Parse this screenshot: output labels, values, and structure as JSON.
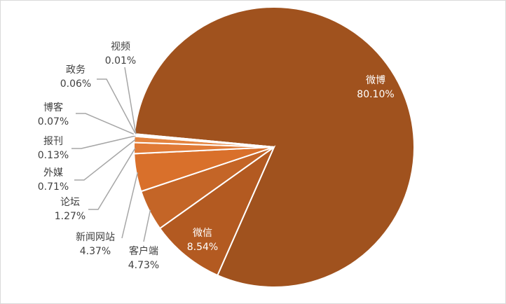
{
  "chart_data": {
    "type": "pie",
    "categories": [
      "微博",
      "微信",
      "客户端",
      "新闻网站",
      "论坛",
      "外媒",
      "报刊",
      "博客",
      "政务",
      "视频"
    ],
    "values": [
      80.1,
      8.54,
      4.73,
      4.37,
      1.27,
      0.71,
      0.13,
      0.07,
      0.06,
      0.01
    ],
    "value_labels": [
      "80.10%",
      "8.54%",
      "4.73%",
      "4.37%",
      "1.27%",
      "0.71%",
      "0.13%",
      "0.07%",
      "0.06%",
      "0.01%"
    ],
    "colors": [
      "#a0521e",
      "#b35a21",
      "#c46527",
      "#d9702b",
      "#e07a36",
      "#e4843f",
      "#e88d4c",
      "#eb9859",
      "#eda264",
      "#efac72"
    ]
  }
}
